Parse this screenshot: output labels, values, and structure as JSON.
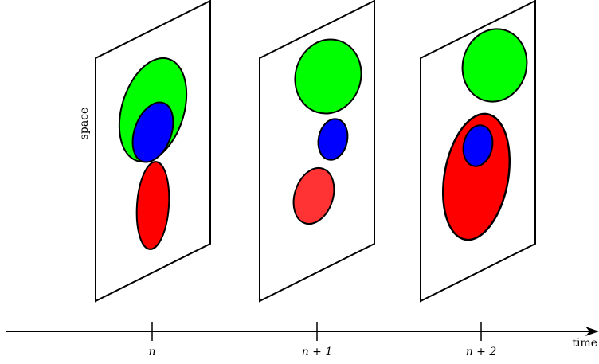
{
  "axis": {
    "y_label": "space",
    "x_label": "time",
    "ticks": [
      "n",
      "n + 1",
      "n + 2"
    ]
  },
  "colors": {
    "green": "#00ff00",
    "blue": "#0000ff",
    "red": "#ff0000",
    "light_red": "#ff3333"
  }
}
